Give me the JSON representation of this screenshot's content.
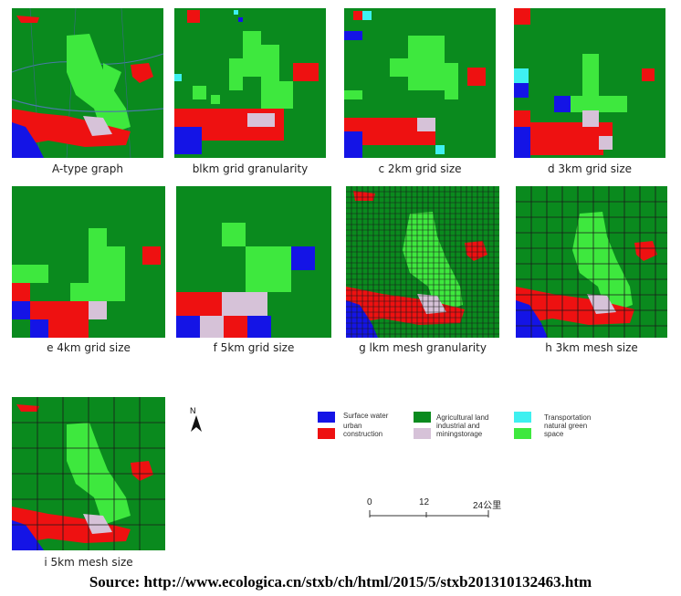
{
  "captions": {
    "a": "A-type graph",
    "b": "blkm grid granularity",
    "c": "c 2km grid size",
    "d": "d 3km grid size",
    "e": "e 4km grid size",
    "f": "f 5km grid size",
    "g": "g lkm mesh granularity",
    "h": "h 3km mesh size",
    "i": "i 5km mesh size"
  },
  "legend": {
    "surface_water": "Surface water",
    "urban_construction": "urban construction",
    "agricultural": "Agricultural land",
    "industrial": "industrial and miningstorage",
    "transportation": "Transportation",
    "natural_green": "natural green space"
  },
  "colors": {
    "agricultural": "#0a8a1e",
    "natural_green": "#3ee83e",
    "urban": "#ee1111",
    "water": "#1414e6",
    "industrial": "#d6c2d8",
    "transport": "#3ef0f0"
  },
  "north": "N",
  "scale": {
    "s0": "0",
    "s1": "12",
    "s2": "24公里"
  },
  "source": "Source: http://www.ecologica.cn/stxb/ch/html/2015/5/stxb201310132463.htm"
}
